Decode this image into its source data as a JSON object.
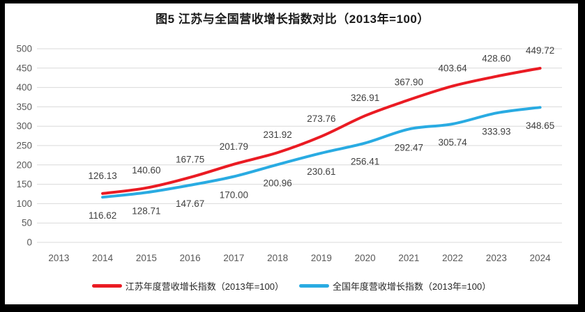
{
  "title": "图5  江苏与全国营收增长指数对比（2013年=100）",
  "chart_data": {
    "type": "line",
    "title": "图5  江苏与全国营收增长指数对比（2013年=100）",
    "categories": [
      "2013",
      "2014",
      "2015",
      "2016",
      "2017",
      "2018",
      "2019",
      "2020",
      "2021",
      "2022",
      "2023",
      "2024"
    ],
    "series": [
      {
        "name": "江苏年度营收增长指数（2013年=100）",
        "color": "#ea1b23",
        "label_position": "above",
        "values": [
          null,
          126.13,
          140.6,
          167.75,
          201.79,
          231.92,
          273.76,
          326.91,
          367.9,
          403.64,
          428.6,
          449.72
        ]
      },
      {
        "name": "全国年度营收增长指数（2013年=100）",
        "color": "#29abe2",
        "label_position": "below",
        "values": [
          null,
          116.62,
          128.71,
          147.67,
          170.0,
          200.96,
          230.61,
          256.41,
          292.47,
          305.74,
          333.93,
          348.65
        ]
      }
    ],
    "xlabel": "",
    "ylabel": "",
    "ylim": [
      0,
      500
    ],
    "yticks": [
      0,
      50,
      100,
      150,
      200,
      250,
      300,
      350,
      400,
      450,
      500
    ],
    "grid": true,
    "data_labels": true,
    "legend_position": "bottom",
    "colors": {
      "gridline": "#d9d9d9",
      "axis_text": "#595959",
      "data_label_text": "#404040"
    }
  }
}
